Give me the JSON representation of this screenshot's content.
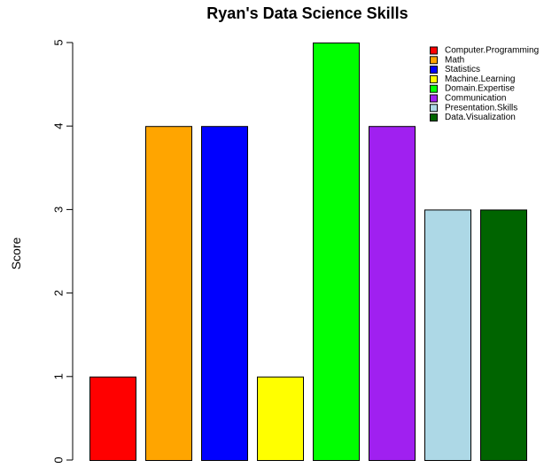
{
  "chart_data": {
    "type": "bar",
    "title": "Ryan's Data Science Skills",
    "xlabel": "",
    "ylabel": "Score",
    "ylim": [
      0,
      5
    ],
    "yticks": [
      "0",
      "1",
      "2",
      "3",
      "4",
      "5"
    ],
    "grid": false,
    "legend_position": "top-right",
    "categories": [
      "Computer.Programming",
      "Math",
      "Statistics",
      "Machine.Learning",
      "Domain.Expertise",
      "Communication",
      "Presentation.Skills",
      "Data.Visualization"
    ],
    "values": [
      1,
      4,
      4,
      1,
      5,
      4,
      3,
      3
    ],
    "colors": [
      "#ff0000",
      "#ffa500",
      "#0000ff",
      "#ffff00",
      "#00ff00",
      "#a020f0",
      "#add8e6",
      "#006400"
    ]
  }
}
